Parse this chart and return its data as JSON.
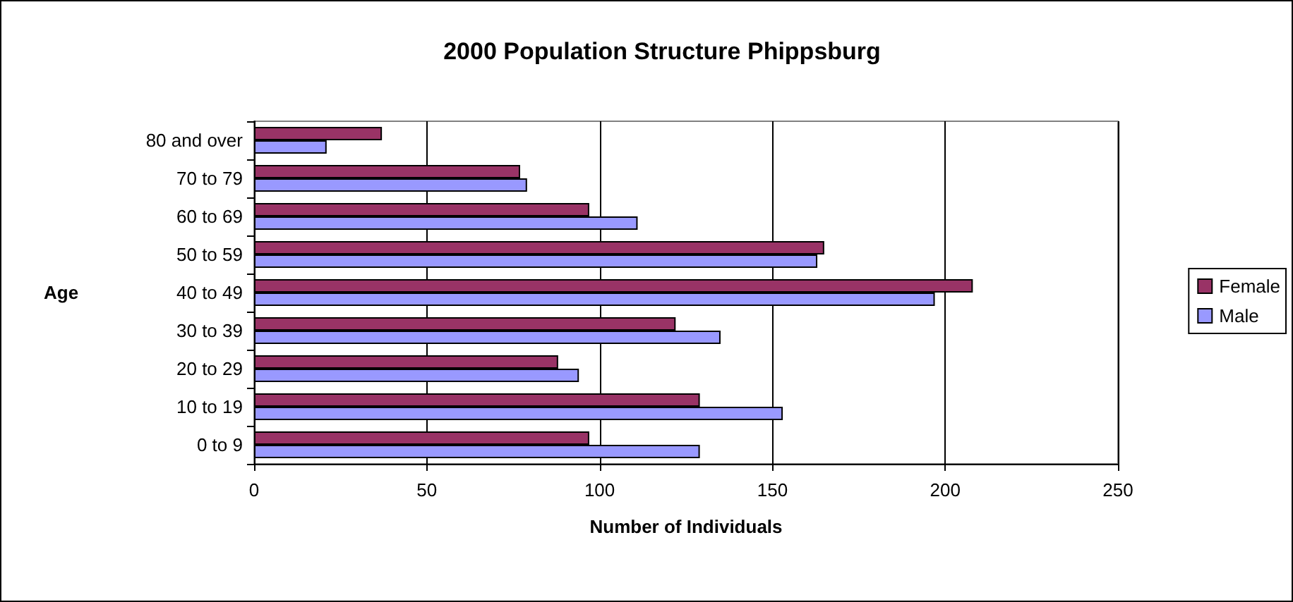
{
  "chart_data": {
    "type": "bar",
    "orientation": "horizontal",
    "title": "2000 Population Structure Phippsburg",
    "xlabel": "Number of Individuals",
    "ylabel": "Age",
    "categories": [
      "80 and over",
      "70 to 79",
      "60 to 69",
      "50 to 59",
      "40 to 49",
      "30 to 39",
      "20 to 29",
      "10 to 19",
      "0 to 9"
    ],
    "series": [
      {
        "name": "Female",
        "color": "#993366",
        "values": [
          37,
          77,
          97,
          165,
          208,
          122,
          88,
          129,
          97
        ]
      },
      {
        "name": "Male",
        "color": "#9999ff",
        "values": [
          21,
          79,
          111,
          163,
          197,
          135,
          94,
          153,
          129
        ]
      }
    ],
    "xlim": [
      0,
      250
    ],
    "xticks": [
      0,
      50,
      100,
      150,
      200,
      250
    ],
    "grid": "x",
    "legend": "right"
  }
}
